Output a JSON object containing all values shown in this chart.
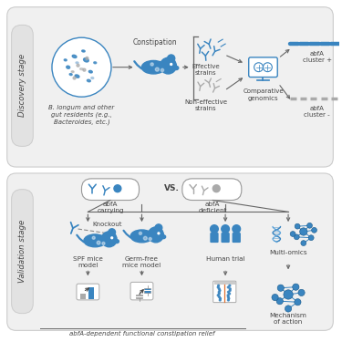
{
  "blue": "#3a85c0",
  "blue_light": "#6aade0",
  "blue_dark": "#1a5a8a",
  "gray": "#aaaaaa",
  "gray_dark": "#888888",
  "gray_light": "#cccccc",
  "text_dark": "#444444",
  "panel_bg": "#efefef",
  "pill_bg": "#e2e2e2",
  "pill_ec": "#cccccc",
  "discovery_label": "Discovery stage",
  "validation_label": "Validation stage",
  "constipation": "Constipation",
  "bacteria_text": "B. longum and other\ngut residents (e.g.,\nBacteroides, etc.)",
  "effective": "Effective\nstrains",
  "non_effective": "Non-effective\nstrains",
  "comparative": "Comparative\ngenomics",
  "abfA_pos": "abfA\ncluster +",
  "abfA_neg": "abfA\ncluster -",
  "abfA_carrying": "abfA\ncarrying",
  "vs": "VS.",
  "abfA_deficient": "abfA\ndeficient",
  "knockout": "Knockout",
  "spf": "SPF mice\nmodel",
  "germfree": "Germ-free\nmice model",
  "human": "Human trial",
  "multiomics": "Multi-omics",
  "bottom": "abfA-dependent functional constipation relief",
  "mechanism": "Mechanism\nof action"
}
